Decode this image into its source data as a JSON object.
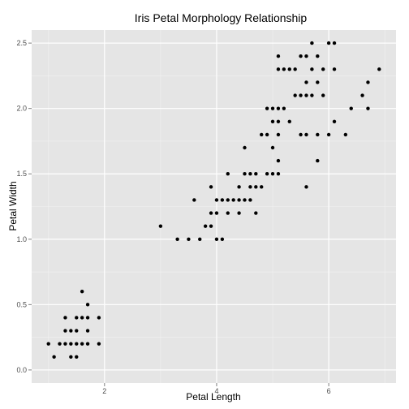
{
  "chart_data": {
    "type": "scatter",
    "title": "Iris Petal Morphology Relationship",
    "xlabel": "Petal Length",
    "ylabel": "Petal Width",
    "xlim": [
      0.7,
      7.2
    ],
    "ylim": [
      -0.1,
      2.6
    ],
    "xticks": [
      2,
      4,
      6
    ],
    "xtick_labels": [
      "2",
      "4",
      "6"
    ],
    "yticks": [
      0.0,
      0.5,
      1.0,
      1.5,
      2.0,
      2.5
    ],
    "ytick_labels": [
      "0.0",
      "0.5",
      "1.0",
      "1.5",
      "2.0",
      "2.5"
    ],
    "grid": true,
    "legend": "none",
    "colors": {
      "panel": "#e5e5e5",
      "grid_major": "#ffffff",
      "grid_minor": "#f2f2f2",
      "point": "#000000"
    },
    "series": [
      {
        "points": [
          [
            1.0,
            0.2
          ],
          [
            1.1,
            0.1
          ],
          [
            1.2,
            0.2
          ],
          [
            1.3,
            0.2
          ],
          [
            1.3,
            0.3
          ],
          [
            1.3,
            0.4
          ],
          [
            1.4,
            0.1
          ],
          [
            1.4,
            0.2
          ],
          [
            1.4,
            0.3
          ],
          [
            1.5,
            0.1
          ],
          [
            1.5,
            0.2
          ],
          [
            1.5,
            0.3
          ],
          [
            1.5,
            0.4
          ],
          [
            1.6,
            0.2
          ],
          [
            1.6,
            0.4
          ],
          [
            1.6,
            0.6
          ],
          [
            1.7,
            0.2
          ],
          [
            1.7,
            0.3
          ],
          [
            1.7,
            0.4
          ],
          [
            1.7,
            0.5
          ],
          [
            1.9,
            0.2
          ],
          [
            1.9,
            0.4
          ],
          [
            3.0,
            1.1
          ],
          [
            3.3,
            1.0
          ],
          [
            3.5,
            1.0
          ],
          [
            3.6,
            1.3
          ],
          [
            3.7,
            1.0
          ],
          [
            3.8,
            1.1
          ],
          [
            3.9,
            1.1
          ],
          [
            3.9,
            1.2
          ],
          [
            3.9,
            1.4
          ],
          [
            4.0,
            1.0
          ],
          [
            4.0,
            1.2
          ],
          [
            4.0,
            1.3
          ],
          [
            4.1,
            1.0
          ],
          [
            4.1,
            1.3
          ],
          [
            4.2,
            1.2
          ],
          [
            4.2,
            1.3
          ],
          [
            4.2,
            1.5
          ],
          [
            4.3,
            1.3
          ],
          [
            4.4,
            1.2
          ],
          [
            4.4,
            1.3
          ],
          [
            4.4,
            1.4
          ],
          [
            4.5,
            1.3
          ],
          [
            4.5,
            1.5
          ],
          [
            4.5,
            1.7
          ],
          [
            4.6,
            1.3
          ],
          [
            4.6,
            1.4
          ],
          [
            4.6,
            1.5
          ],
          [
            4.7,
            1.2
          ],
          [
            4.7,
            1.4
          ],
          [
            4.7,
            1.5
          ],
          [
            4.8,
            1.4
          ],
          [
            4.8,
            1.8
          ],
          [
            4.9,
            1.5
          ],
          [
            4.9,
            1.8
          ],
          [
            4.9,
            2.0
          ],
          [
            5.0,
            1.5
          ],
          [
            5.0,
            1.7
          ],
          [
            5.0,
            1.9
          ],
          [
            5.0,
            2.0
          ],
          [
            5.1,
            1.5
          ],
          [
            5.1,
            1.6
          ],
          [
            5.1,
            1.8
          ],
          [
            5.1,
            1.9
          ],
          [
            5.1,
            2.0
          ],
          [
            5.1,
            2.3
          ],
          [
            5.1,
            2.4
          ],
          [
            5.2,
            2.0
          ],
          [
            5.2,
            2.3
          ],
          [
            5.3,
            1.9
          ],
          [
            5.3,
            2.3
          ],
          [
            5.4,
            2.1
          ],
          [
            5.4,
            2.3
          ],
          [
            5.5,
            1.8
          ],
          [
            5.5,
            2.1
          ],
          [
            5.5,
            2.4
          ],
          [
            5.6,
            1.4
          ],
          [
            5.6,
            1.8
          ],
          [
            5.6,
            2.1
          ],
          [
            5.6,
            2.2
          ],
          [
            5.6,
            2.4
          ],
          [
            5.7,
            2.1
          ],
          [
            5.7,
            2.3
          ],
          [
            5.7,
            2.5
          ],
          [
            5.8,
            1.6
          ],
          [
            5.8,
            1.8
          ],
          [
            5.8,
            2.2
          ],
          [
            5.8,
            2.4
          ],
          [
            5.9,
            2.1
          ],
          [
            5.9,
            2.3
          ],
          [
            6.0,
            1.8
          ],
          [
            6.0,
            2.5
          ],
          [
            6.1,
            1.9
          ],
          [
            6.1,
            2.3
          ],
          [
            6.1,
            2.5
          ],
          [
            6.3,
            1.8
          ],
          [
            6.4,
            2.0
          ],
          [
            6.6,
            2.1
          ],
          [
            6.7,
            2.0
          ],
          [
            6.7,
            2.2
          ],
          [
            6.9,
            2.3
          ]
        ]
      }
    ]
  }
}
